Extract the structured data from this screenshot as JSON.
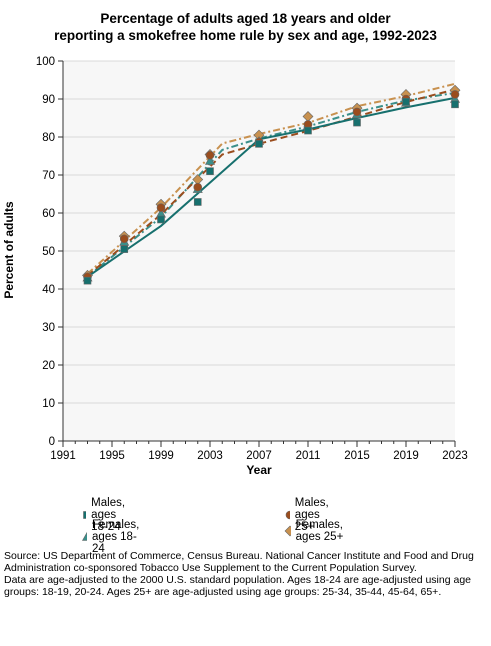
{
  "title_lines": [
    "Percentage of adults aged 18 years and older",
    "reporting a smokefree home rule by sex and age, 1992-2023"
  ],
  "notes": [
    "Source: US Department of Commerce, Census Bureau. National Cancer Institute and Food and Drug Administration co-sponsored Tobacco Use Supplement to the Current Population Survey.",
    "Data are age-adjusted to the 2000 U.S. standard population. Ages 18-24 are age-adjusted using age groups: 18-19, 20-24. Ages 25+ are age-adjusted using age groups: 25-34, 35-44, 45-64, 65+."
  ],
  "chart_data": {
    "type": "line",
    "xlabel": "Year",
    "ylabel": "Percent of adults",
    "xlim": [
      1991,
      2023
    ],
    "ylim": [
      0,
      100
    ],
    "x_ticks": [
      1991,
      1995,
      1999,
      2003,
      2007,
      2011,
      2015,
      2019,
      2023
    ],
    "y_ticks": [
      0,
      10,
      20,
      30,
      40,
      50,
      60,
      70,
      80,
      90,
      100
    ],
    "grid": "horizontal",
    "legend_position": "bottom",
    "x": [
      1993,
      1996,
      1999,
      2002,
      2003,
      2007,
      2011,
      2015,
      2019,
      2023
    ],
    "series": [
      {
        "name": "Males, ages 18-24",
        "marker": "square",
        "color": "#17706e",
        "line_style": "solid",
        "values": [
          42.2,
          50.5,
          58.3,
          62.9,
          71.0,
          78.2,
          81.7,
          83.8,
          89.3,
          88.6
        ],
        "trend": [
          [
            1993,
            43.2
          ],
          [
            1999,
            56.6
          ],
          [
            2003,
            68.0
          ],
          [
            2007,
            79.4
          ],
          [
            2011,
            82.0
          ],
          [
            2015,
            85.0
          ],
          [
            2019,
            87.8
          ],
          [
            2023,
            90.3
          ]
        ]
      },
      {
        "name": "Males, ages 25+",
        "marker": "circle",
        "color": "#9a4d1e",
        "line_style": "dash",
        "values": [
          43.2,
          53.2,
          61.4,
          66.8,
          75.2,
          78.7,
          83.3,
          86.6,
          90.0,
          91.2
        ],
        "trend": [
          [
            1993,
            43.5
          ],
          [
            1999,
            59.6
          ],
          [
            2004,
            75.4
          ],
          [
            2007,
            78.2
          ],
          [
            2011,
            81.6
          ],
          [
            2015,
            85.4
          ],
          [
            2019,
            89.2
          ],
          [
            2023,
            92.5
          ]
        ]
      },
      {
        "name": "Females, ages 18-24",
        "marker": "triangle",
        "color": "#3a8f8a",
        "line_style": "dashdot",
        "values": [
          43.0,
          52.4,
          59.8,
          66.3,
          73.7,
          78.9,
          83.0,
          86.0,
          89.0,
          90.0
        ],
        "trend": [
          [
            1993,
            43.3
          ],
          [
            1999,
            58.9
          ],
          [
            2004,
            76.6
          ],
          [
            2007,
            79.6
          ],
          [
            2011,
            82.8
          ],
          [
            2015,
            86.6
          ],
          [
            2019,
            89.6
          ],
          [
            2023,
            91.6
          ]
        ]
      },
      {
        "name": "Females, ages 25+",
        "marker": "diamond",
        "color": "#c8914f",
        "line_style": "dashdot",
        "values": [
          43.6,
          53.9,
          62.3,
          68.8,
          75.4,
          80.5,
          85.4,
          87.6,
          91.2,
          92.3
        ],
        "trend": [
          [
            1993,
            44.0
          ],
          [
            1999,
            61.4
          ],
          [
            2004,
            78.3
          ],
          [
            2007,
            80.8
          ],
          [
            2011,
            83.7
          ],
          [
            2015,
            88.1
          ],
          [
            2019,
            90.8
          ],
          [
            2023,
            94.0
          ]
        ]
      }
    ]
  }
}
